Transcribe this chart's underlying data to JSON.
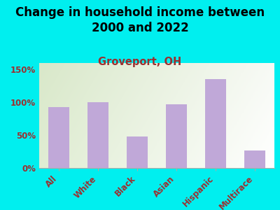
{
  "title": "Change in household income between\n2000 and 2022",
  "subtitle": "Groveport, OH",
  "categories": [
    "All",
    "White",
    "Black",
    "Asian",
    "Hispanic",
    "Multirace"
  ],
  "values": [
    93,
    100,
    48,
    97,
    135,
    27
  ],
  "bar_color": "#c0a8d8",
  "background_color": "#00efef",
  "plot_bg_left": "#d8e8c8",
  "plot_bg_right": "#f0f0ea",
  "title_fontsize": 12,
  "subtitle_fontsize": 10.5,
  "subtitle_color": "#9b3030",
  "tick_color": "#9b3030",
  "ylim": [
    0,
    160
  ],
  "yticks": [
    0,
    50,
    100,
    150
  ],
  "ytick_labels": [
    "0%",
    "50%",
    "100%",
    "150%"
  ]
}
